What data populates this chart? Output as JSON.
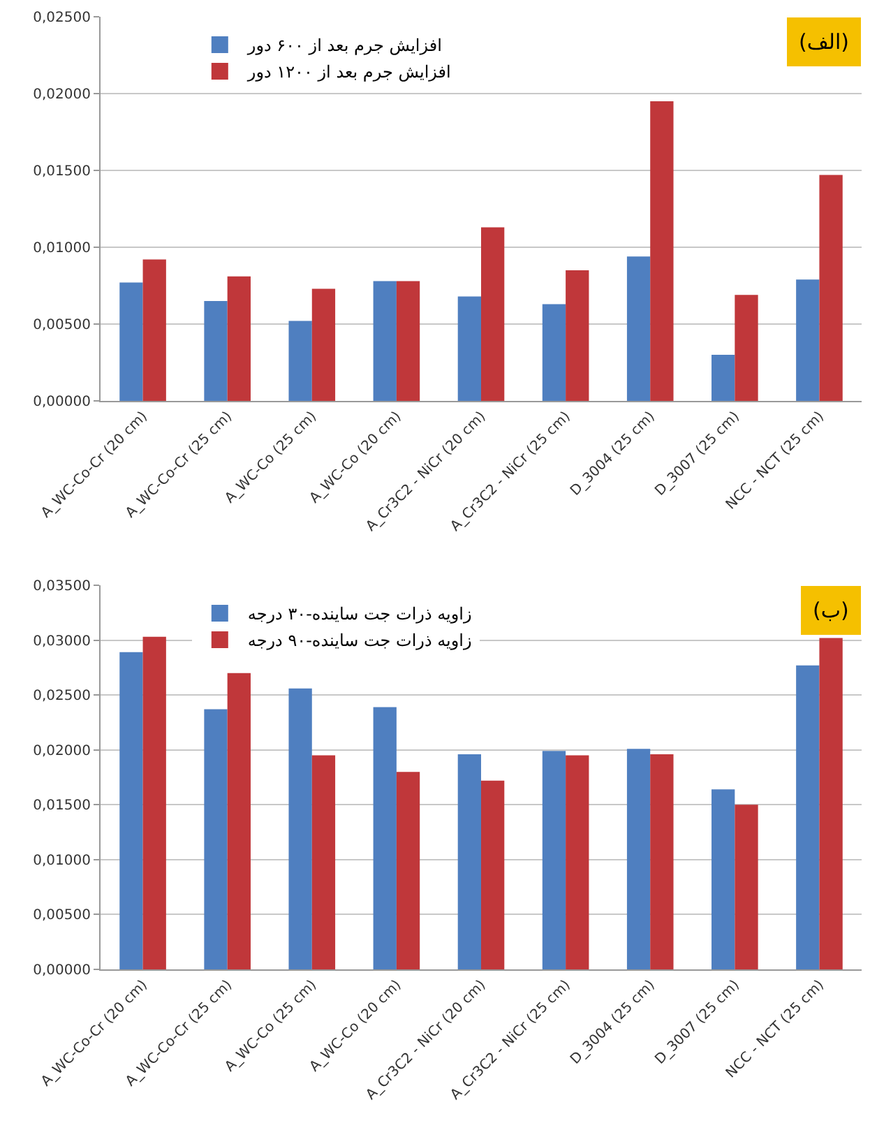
{
  "chart_data": [
    {
      "type": "bar",
      "annotations": [
        "(الف)"
      ],
      "categories": [
        "A_WC-Co-Cr (20 cm)",
        "A_WC-Co-Cr (25 cm)",
        "A_WC-Co (25 cm)",
        "A_WC-Co (20 cm)",
        "A_Cr3C2 - NiCr (20 cm)",
        "A_Cr3C2 - NiCr (25 cm)",
        "D_3004 (25 cm)",
        "D_3007 (25 cm)",
        "NCC - NCT (25 cm)"
      ],
      "series": [
        {
          "name": "افزایش جرم بعد از ۶۰۰ دور",
          "color": "#4f7fc0",
          "values": [
            0.0077,
            0.0065,
            0.0052,
            0.0078,
            0.0068,
            0.0063,
            0.0094,
            0.003,
            0.0079
          ]
        },
        {
          "name": "افزایش جرم بعد از ۱۲۰۰ دور",
          "color": "#c0373a",
          "values": [
            0.0092,
            0.0081,
            0.0073,
            0.0078,
            0.0113,
            0.0085,
            0.0195,
            0.0069,
            0.0147
          ]
        }
      ],
      "ylim": [
        0,
        0.025
      ],
      "yticks": [
        {
          "value": 0,
          "label": "0,00000"
        },
        {
          "value": 0.005,
          "label": "0,00500"
        },
        {
          "value": 0.01,
          "label": "0,01000"
        },
        {
          "value": 0.015,
          "label": "0,01500"
        },
        {
          "value": 0.02,
          "label": "0,02000"
        },
        {
          "value": 0.025,
          "label": "0,02500"
        }
      ],
      "grid": "y",
      "legend": "top left"
    },
    {
      "type": "bar",
      "annotations": [
        "(ب)"
      ],
      "categories": [
        "A_WC-Co-Cr (20 cm)",
        "A_WC-Co-Cr (25 cm)",
        "A_WC-Co (25 cm)",
        "A_WC-Co (20 cm)",
        "A_Cr3C2 - NiCr (20 cm)",
        "A_Cr3C2 - NiCr (25 cm)",
        "D_3004 (25 cm)",
        "D_3007 (25 cm)",
        "NCC - NCT (25 cm)"
      ],
      "series": [
        {
          "name": "زاویه ذرات جت ساینده-۳۰ درجه",
          "color": "#4f7fc0",
          "values": [
            0.0289,
            0.0237,
            0.0256,
            0.0239,
            0.0196,
            0.0199,
            0.0201,
            0.0164,
            0.0277
          ]
        },
        {
          "name": "زاویه ذرات جت ساینده-۹۰ درجه",
          "color": "#c0373a",
          "values": [
            0.0303,
            0.027,
            0.0195,
            0.018,
            0.0172,
            0.0195,
            0.0196,
            0.015,
            0.0302
          ]
        }
      ],
      "ylim": [
        0,
        0.035
      ],
      "yticks": [
        {
          "value": 0,
          "label": "0,00000"
        },
        {
          "value": 0.005,
          "label": "0,00500"
        },
        {
          "value": 0.01,
          "label": "0,01000"
        },
        {
          "value": 0.015,
          "label": "0,01500"
        },
        {
          "value": 0.02,
          "label": "0,02000"
        },
        {
          "value": 0.025,
          "label": "0,02500"
        },
        {
          "value": 0.03,
          "label": "0,03000"
        },
        {
          "value": 0.035,
          "label": "0,03500"
        }
      ],
      "grid": "y",
      "legend": "top left"
    }
  ]
}
